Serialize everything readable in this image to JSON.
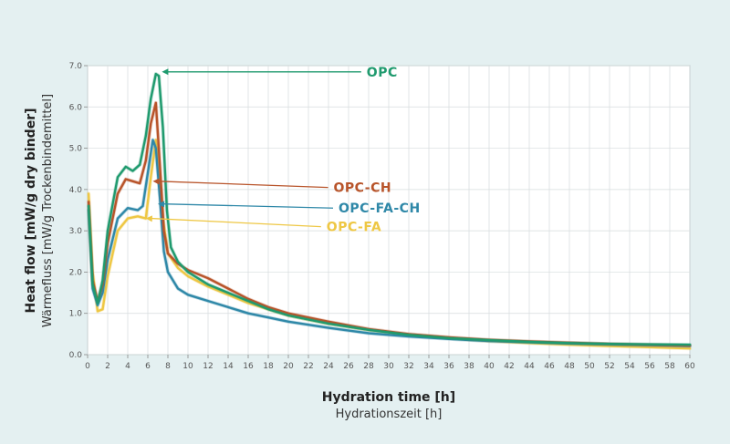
{
  "chart_data": {
    "type": "line",
    "title": "",
    "xlabel": "Hydration time [h]",
    "xlabel_sub": "Hydrationszeit [h]",
    "ylabel": "Heat flow [mW/g dry binder]",
    "ylabel_sub": "Wärmefluss [mW/g Trockenbindemittel]",
    "xlim": [
      0,
      60
    ],
    "ylim": [
      0,
      7
    ],
    "x_ticks": [
      0,
      2,
      4,
      6,
      8,
      10,
      12,
      14,
      16,
      18,
      20,
      22,
      24,
      26,
      28,
      30,
      32,
      34,
      36,
      38,
      40,
      42,
      44,
      46,
      48,
      50,
      52,
      54,
      56,
      58,
      60
    ],
    "y_ticks": [
      "0.0",
      "1.0",
      "2.0",
      "3.0",
      "4.0",
      "5.0",
      "6.0",
      "7.0"
    ],
    "grid": true,
    "series": [
      {
        "name": "OPC-FA",
        "color": "#eec744",
        "x": [
          0.1,
          0.5,
          1.0,
          1.5,
          2.0,
          3.0,
          4.0,
          5.0,
          5.8,
          6.3,
          6.8,
          7.2,
          7.5,
          8.0,
          9.0,
          10.0,
          12.0,
          14.0,
          16.0,
          18.0,
          20.0,
          24.0,
          28.0,
          32.0,
          36.0,
          40.0,
          44.0,
          48.0,
          52.0,
          56.0,
          60.0
        ],
        "y": [
          3.9,
          2.0,
          1.05,
          1.1,
          1.9,
          3.0,
          3.3,
          3.35,
          3.3,
          4.3,
          5.2,
          4.3,
          3.3,
          2.45,
          2.1,
          1.9,
          1.65,
          1.45,
          1.25,
          1.1,
          0.95,
          0.75,
          0.6,
          0.48,
          0.4,
          0.33,
          0.28,
          0.24,
          0.21,
          0.18,
          0.15
        ]
      },
      {
        "name": "OPC-FA-CH",
        "color": "#2f88a8",
        "x": [
          0.1,
          0.5,
          1.0,
          1.5,
          2.0,
          3.0,
          4.0,
          5.0,
          5.5,
          6.0,
          6.5,
          6.8,
          7.2,
          7.6,
          8.0,
          9.0,
          10.0,
          12.0,
          14.0,
          16.0,
          18.0,
          20.0,
          24.0,
          28.0,
          32.0,
          36.0,
          40.0,
          44.0,
          48.0,
          52.0,
          56.0,
          60.0
        ],
        "y": [
          3.5,
          1.6,
          1.2,
          1.5,
          2.3,
          3.3,
          3.55,
          3.5,
          3.6,
          4.4,
          5.2,
          5.0,
          3.8,
          2.5,
          2.0,
          1.6,
          1.45,
          1.3,
          1.15,
          1.0,
          0.9,
          0.8,
          0.65,
          0.52,
          0.44,
          0.38,
          0.33,
          0.3,
          0.27,
          0.25,
          0.23,
          0.21
        ]
      },
      {
        "name": "OPC-CH",
        "color": "#b8542a",
        "x": [
          0.1,
          0.5,
          1.0,
          1.5,
          2.0,
          3.0,
          3.8,
          4.5,
          5.2,
          5.8,
          6.3,
          6.8,
          7.2,
          7.6,
          8.0,
          9.0,
          10.0,
          12.0,
          14.0,
          16.0,
          18.0,
          20.0,
          24.0,
          28.0,
          32.0,
          36.0,
          40.0,
          44.0,
          48.0,
          52.0,
          56.0,
          60.0
        ],
        "y": [
          3.7,
          1.8,
          1.3,
          1.7,
          2.7,
          3.9,
          4.25,
          4.2,
          4.15,
          4.7,
          5.6,
          6.1,
          4.6,
          3.0,
          2.45,
          2.2,
          2.05,
          1.85,
          1.6,
          1.35,
          1.15,
          1.0,
          0.8,
          0.62,
          0.5,
          0.42,
          0.36,
          0.32,
          0.29,
          0.26,
          0.24,
          0.22
        ]
      },
      {
        "name": "OPC",
        "color": "#1f9a6e",
        "x": [
          0.1,
          0.5,
          1.0,
          1.5,
          2.0,
          3.0,
          3.8,
          4.5,
          5.2,
          5.8,
          6.3,
          6.8,
          7.1,
          7.5,
          7.9,
          8.3,
          9.0,
          10.0,
          12.0,
          14.0,
          16.0,
          18.0,
          20.0,
          24.0,
          28.0,
          32.0,
          36.0,
          40.0,
          44.0,
          48.0,
          52.0,
          56.0,
          60.0
        ],
        "y": [
          3.6,
          1.7,
          1.25,
          1.8,
          3.0,
          4.3,
          4.55,
          4.45,
          4.6,
          5.3,
          6.2,
          6.8,
          6.75,
          5.5,
          3.5,
          2.6,
          2.25,
          2.0,
          1.7,
          1.5,
          1.3,
          1.1,
          0.95,
          0.75,
          0.6,
          0.48,
          0.4,
          0.35,
          0.31,
          0.28,
          0.26,
          0.25,
          0.24
        ]
      }
    ],
    "annotations": [
      {
        "series": "OPC",
        "text": "OPC",
        "color": "#1f9a6e",
        "text_x": 0.34,
        "text_y": 6.85,
        "arrow_to_x": 7.4,
        "arrow_to_y": 6.85
      },
      {
        "series": "OPC-CH",
        "text": "OPC-CH",
        "color": "#b8542a",
        "text_x": 0.3,
        "text_y": 4.05,
        "arrow_to_x": 6.5,
        "arrow_to_y": 4.2
      },
      {
        "series": "OPC-FA-CH",
        "text": "OPC-FA-CH",
        "color": "#2f88a8",
        "text_x": 0.3,
        "text_y": 3.55,
        "arrow_to_x": 7.0,
        "arrow_to_y": 3.65
      },
      {
        "series": "OPC-FA",
        "text": "OPC-FA",
        "color": "#eec744",
        "text_x": 0.3,
        "text_y": 3.1,
        "arrow_to_x": 5.8,
        "arrow_to_y": 3.3
      }
    ]
  }
}
